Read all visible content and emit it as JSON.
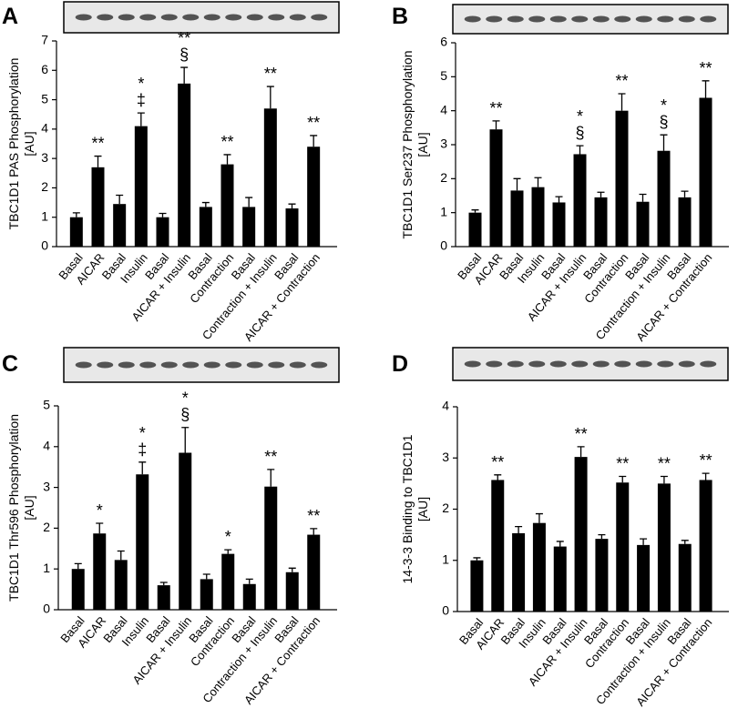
{
  "chart_data": [
    {
      "type": "bar",
      "panel": "A",
      "y_label": [
        "TBC1D1 PAS Phosphorylation",
        "[AU]"
      ],
      "categories": [
        "Basal",
        "AICAR",
        "Basal",
        "Insulin",
        "Basal",
        "AICAR + Insulin",
        "Basal",
        "Contraction",
        "Basal",
        "Contraction + Insulin",
        "Basal",
        "AICAR + Contraction"
      ],
      "values": [
        1.0,
        2.7,
        1.45,
        4.1,
        1.0,
        5.55,
        1.35,
        2.8,
        1.35,
        4.7,
        1.3,
        3.4
      ],
      "errors": [
        0.15,
        0.38,
        0.3,
        0.45,
        0.13,
        0.55,
        0.15,
        0.33,
        0.32,
        0.75,
        0.15,
        0.38
      ],
      "significance": [
        null,
        [
          "**"
        ],
        null,
        [
          "*",
          "‡"
        ],
        null,
        [
          "**",
          "§"
        ],
        null,
        [
          "**"
        ],
        null,
        [
          "**"
        ],
        null,
        [
          "**"
        ]
      ],
      "color": "#000000",
      "ylim": [
        0,
        7
      ],
      "yticks": [
        0,
        1,
        2,
        3,
        4,
        5,
        6,
        7
      ]
    },
    {
      "type": "bar",
      "panel": "B",
      "y_label": [
        "TBC1D1 Ser237 Phosphorylation",
        "[AU]"
      ],
      "categories": [
        "Basal",
        "AICAR",
        "Basal",
        "Insulin",
        "Basal",
        "AICAR + Insulin",
        "Basal",
        "Contraction",
        "Basal",
        "Contraction + Insulin",
        "Basal",
        "AICAR + Contraction"
      ],
      "values": [
        1.0,
        3.45,
        1.65,
        1.75,
        1.3,
        2.72,
        1.45,
        4.0,
        1.32,
        2.82,
        1.45,
        4.38
      ],
      "errors": [
        0.08,
        0.25,
        0.35,
        0.28,
        0.17,
        0.25,
        0.15,
        0.5,
        0.22,
        0.47,
        0.18,
        0.5
      ],
      "significance": [
        null,
        [
          "**"
        ],
        null,
        null,
        null,
        [
          "*",
          "§"
        ],
        null,
        [
          "**"
        ],
        null,
        [
          "*",
          "§"
        ],
        null,
        [
          "**"
        ]
      ],
      "color": "#000000",
      "ylim": [
        0,
        6
      ],
      "yticks": [
        0,
        1,
        2,
        3,
        4,
        5,
        6
      ]
    },
    {
      "type": "bar",
      "panel": "C",
      "y_label": [
        "TBC1D1 Thr596 Phosphorylation",
        "[AU]"
      ],
      "categories": [
        "Basal",
        "AICAR",
        "Basal",
        "Insulin",
        "Basal",
        "AICAR + Insulin",
        "Basal",
        "Contraction",
        "Basal",
        "Contraction + Insulin",
        "Basal",
        "AICAR + Contraction"
      ],
      "values": [
        1.0,
        1.87,
        1.22,
        3.32,
        0.6,
        3.85,
        0.75,
        1.37,
        0.63,
        3.02,
        0.92,
        1.84
      ],
      "errors": [
        0.13,
        0.25,
        0.22,
        0.3,
        0.07,
        0.62,
        0.12,
        0.1,
        0.12,
        0.42,
        0.1,
        0.15
      ],
      "significance": [
        null,
        [
          "*"
        ],
        null,
        [
          "*",
          "‡"
        ],
        null,
        [
          "*",
          "§"
        ],
        null,
        [
          "*"
        ],
        null,
        [
          "**"
        ],
        null,
        [
          "**"
        ]
      ],
      "color": "#000000",
      "ylim": [
        0,
        5
      ],
      "yticks": [
        0,
        1,
        2,
        3,
        4,
        5
      ]
    },
    {
      "type": "bar",
      "panel": "D",
      "y_label": [
        "14-3-3 Binding to TBC1D1",
        "[AU]"
      ],
      "categories": [
        "Basal",
        "AICAR",
        "Basal",
        "Insulin",
        "Basal",
        "AICAR + Insulin",
        "Basal",
        "Contraction",
        "Basal",
        "Contraction + Insulin",
        "Basal",
        "AICAR + Contraction"
      ],
      "values": [
        1.0,
        2.57,
        1.53,
        1.73,
        1.27,
        3.02,
        1.42,
        2.52,
        1.3,
        2.5,
        1.32,
        2.57
      ],
      "errors": [
        0.05,
        0.1,
        0.13,
        0.18,
        0.1,
        0.2,
        0.08,
        0.12,
        0.12,
        0.14,
        0.07,
        0.13
      ],
      "significance": [
        null,
        [
          "**"
        ],
        null,
        null,
        null,
        [
          "**"
        ],
        null,
        [
          "**"
        ],
        null,
        [
          "**"
        ],
        null,
        [
          "**"
        ]
      ],
      "color": "#000000",
      "ylim": [
        0,
        4
      ],
      "yticks": [
        0,
        1,
        2,
        3,
        4
      ]
    }
  ]
}
